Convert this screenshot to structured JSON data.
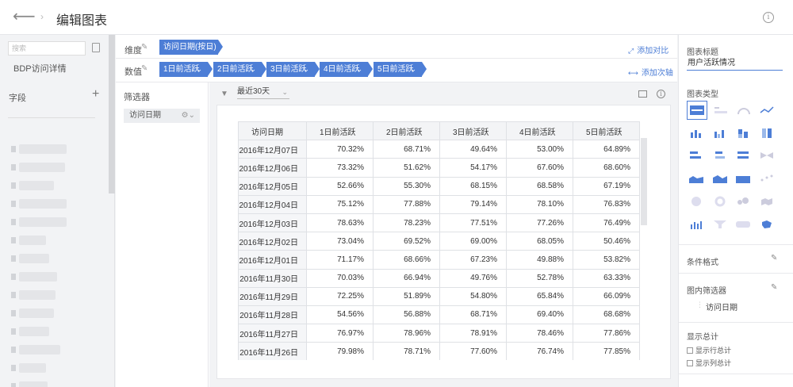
{
  "header": {
    "back_icon": "arrow-left-icon",
    "title": "编辑图表",
    "info_glyph": "i"
  },
  "left": {
    "search_placeholder": "搜索",
    "dataset_name": "BDP访问详情",
    "fields_title": "字段"
  },
  "config": {
    "dimension_label": "维度",
    "value_label": "数值",
    "dimension_chip": "访问日期(按日)",
    "value_chips": [
      "1日前活跃",
      "2日前活跃",
      "3日前活跃",
      "4日前活跃",
      "5日前活跃"
    ],
    "add_compare": "添加对比",
    "add_secondary_axis": "添加次轴"
  },
  "filter": {
    "title": "筛选器",
    "chip": "访问日期"
  },
  "canvas": {
    "date_range": "最近30天"
  },
  "table": {
    "headers": [
      "访问日期",
      "1日前活跃",
      "2日前活跃",
      "3日前活跃",
      "4日前活跃",
      "5日前活跃"
    ],
    "rows": [
      [
        "2016年12月07日",
        "70.32%",
        "68.71%",
        "49.64%",
        "53.00%",
        "64.89%"
      ],
      [
        "2016年12月06日",
        "73.32%",
        "51.62%",
        "54.17%",
        "67.60%",
        "68.60%"
      ],
      [
        "2016年12月05日",
        "52.66%",
        "55.30%",
        "68.15%",
        "68.58%",
        "67.19%"
      ],
      [
        "2016年12月04日",
        "75.12%",
        "77.88%",
        "79.14%",
        "78.10%",
        "76.83%"
      ],
      [
        "2016年12月03日",
        "78.63%",
        "78.23%",
        "77.51%",
        "77.26%",
        "76.49%"
      ],
      [
        "2016年12月02日",
        "73.04%",
        "69.52%",
        "69.00%",
        "68.05%",
        "50.46%"
      ],
      [
        "2016年12月01日",
        "71.17%",
        "68.66%",
        "67.23%",
        "49.88%",
        "53.82%"
      ],
      [
        "2016年11月30日",
        "70.03%",
        "66.94%",
        "49.76%",
        "52.78%",
        "63.33%"
      ],
      [
        "2016年11月29日",
        "72.25%",
        "51.89%",
        "54.80%",
        "65.84%",
        "66.09%"
      ],
      [
        "2016年11月28日",
        "54.56%",
        "56.88%",
        "68.71%",
        "69.40%",
        "68.68%"
      ],
      [
        "2016年11月27日",
        "76.97%",
        "78.96%",
        "78.91%",
        "78.46%",
        "77.86%"
      ],
      [
        "2016年11月26日",
        "79.98%",
        "78.71%",
        "77.60%",
        "76.74%",
        "77.85%"
      ]
    ]
  },
  "right": {
    "chart_title_label": "图表标题",
    "chart_title_value": "用户活跃情况",
    "chart_type_label": "图表类型",
    "conditional_format": "条件格式",
    "inner_filter": "图内筛选器",
    "inner_filter_field": "访问日期",
    "show_total": "显示总计",
    "show_row_total": "显示行总计",
    "show_col_total": "显示列总计",
    "accent_color": "#4d7ed6"
  }
}
